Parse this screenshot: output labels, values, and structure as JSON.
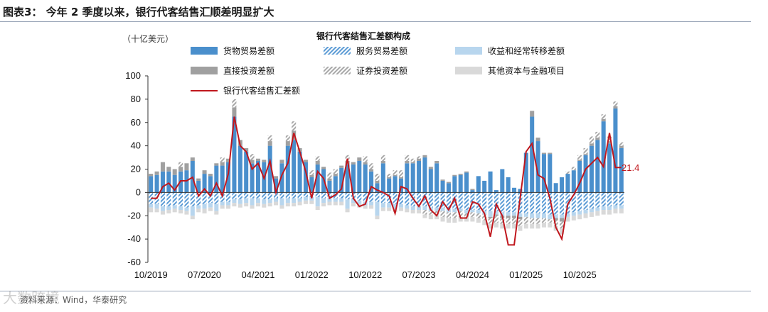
{
  "figure": {
    "title": "图表3： 今年 2 季度以来，银行代客结售汇顺差明显扩大",
    "source": "资料来源：Wind，华泰研究",
    "watermark": "大数跨境"
  },
  "chart_data": {
    "type": "bar",
    "unit_label": "（十亿美元）",
    "legend_title": "银行代客结售汇差额构成",
    "legend_position": "top",
    "ylim": [
      -60,
      100
    ],
    "yticks": [
      -60,
      -40,
      -20,
      0,
      20,
      40,
      60,
      80,
      100
    ],
    "x_tick_labels": [
      "10/2019",
      "07/2020",
      "04/2021",
      "01/2022",
      "10/2022",
      "07/2023",
      "04/2024",
      "01/2025",
      "10/2025"
    ],
    "end_label": "21.4",
    "colors": {
      "goods": "#4a8fcc",
      "services": "#5b9bd5",
      "income": "#b8d6ee",
      "direct": "#a0a0a0",
      "portfolio": "#a8a8a8",
      "other": "#d9d9d9",
      "net": "#c0171d"
    },
    "series": [
      {
        "key": "goods",
        "name": "货物贸易差额",
        "style": "solid",
        "values": [
          14,
          15,
          18,
          18,
          15,
          18,
          19,
          27,
          10,
          16,
          14,
          23,
          23,
          26,
          65,
          40,
          35,
          25,
          27,
          26,
          40,
          12,
          25,
          40,
          45,
          35,
          26,
          13,
          24,
          20,
          10,
          14,
          21,
          24,
          24,
          27,
          24,
          18,
          8,
          25,
          12,
          14,
          12,
          25,
          25,
          27,
          30,
          20,
          25,
          10,
          8,
          14,
          15,
          17,
          2,
          14,
          10,
          18,
          2,
          20,
          13,
          4,
          3,
          34,
          65,
          44,
          33,
          33,
          8,
          13,
          16,
          19,
          27,
          32,
          40,
          45,
          61,
          42,
          72,
          38
        ]
      },
      {
        "key": "services",
        "name": "服务贸易差额",
        "style": "hatch-blue",
        "values": [
          -10,
          -10,
          -12,
          -12,
          -11,
          -12,
          -13,
          -12,
          -11,
          -10,
          -9,
          -10,
          -8,
          -8,
          -6,
          -6,
          -5,
          -5,
          -5,
          -6,
          -6,
          -5,
          -5,
          -5,
          -5,
          -5,
          -4,
          -4,
          -4,
          -5,
          -5,
          -5,
          -5,
          -6,
          -6,
          -7,
          -8,
          -8,
          -8,
          -9,
          -9,
          -10,
          -10,
          -11,
          -12,
          -12,
          -12,
          -13,
          -13,
          -13,
          -14,
          -14,
          -14,
          -15,
          -15,
          -15,
          -16,
          -16,
          -16,
          -17,
          -17,
          -17,
          -18,
          -18,
          -18,
          -18,
          -18,
          -19,
          -19,
          -19,
          -18,
          -17,
          -16,
          -15,
          -14,
          -13,
          -12,
          -12,
          -11,
          -11
        ]
      },
      {
        "key": "income",
        "name": "收益和经常转移差额",
        "style": "solid",
        "values": [
          -3,
          -4,
          -4,
          -3,
          -3,
          -3,
          -3,
          -8,
          -3,
          -4,
          -4,
          -6,
          -3,
          -3,
          -3,
          -4,
          -4,
          -6,
          -4,
          -4,
          -3,
          -3,
          -6,
          -4,
          -4,
          -3,
          -3,
          -3,
          -8,
          -4,
          -3,
          -3,
          -3,
          -8,
          -3,
          -3,
          -3,
          -3,
          -12,
          -4,
          -4,
          -4,
          -3,
          -3,
          -3,
          -3,
          -3,
          -3,
          -3,
          -3,
          -3,
          -3,
          -2,
          -3,
          -2,
          -3,
          -3,
          -5,
          -3,
          -3,
          -3,
          -3,
          -3,
          -3,
          -4,
          -4,
          -4,
          -4,
          -3,
          -3,
          -3,
          -3,
          -3,
          -3,
          -3,
          -3,
          -3,
          -3,
          -3,
          -3
        ]
      },
      {
        "key": "direct",
        "name": "直接投资差额",
        "style": "solid",
        "values": [
          2,
          3,
          8,
          4,
          5,
          4,
          6,
          3,
          2,
          3,
          2,
          2,
          3,
          3,
          8,
          5,
          3,
          3,
          2,
          2,
          4,
          2,
          3,
          4,
          8,
          3,
          2,
          2,
          3,
          2,
          2,
          2,
          2,
          3,
          2,
          3,
          2,
          2,
          2,
          2,
          1,
          1,
          1,
          2,
          1,
          2,
          2,
          2,
          2,
          1,
          1,
          1,
          1,
          1,
          1,
          0,
          0,
          -1,
          -1,
          -2,
          -2,
          -2,
          -2,
          0,
          5,
          3,
          1,
          1,
          -2,
          -3,
          0,
          0,
          1,
          1,
          2,
          2,
          2,
          2,
          2,
          2
        ]
      },
      {
        "key": "portfolio",
        "name": "证券投资差额",
        "style": "hatch-gray",
        "values": [
          0,
          0,
          0,
          0,
          0,
          4,
          0,
          0,
          0,
          0,
          0,
          0,
          4,
          0,
          7,
          0,
          0,
          5,
          0,
          0,
          5,
          0,
          0,
          5,
          8,
          0,
          0,
          4,
          4,
          0,
          5,
          4,
          0,
          5,
          0,
          0,
          5,
          5,
          6,
          5,
          3,
          4,
          6,
          5,
          3,
          2,
          -4,
          -3,
          -3,
          -5,
          -5,
          -5,
          -5,
          -3,
          -4,
          -4,
          -5,
          -5,
          -6,
          -5,
          -5,
          -5,
          -6,
          -6,
          -5,
          -5,
          -4,
          -3,
          -5,
          -6,
          2,
          3,
          4,
          5,
          6,
          5,
          4,
          4,
          4,
          3
        ]
      },
      {
        "key": "other",
        "name": "其他资本与金融项目",
        "style": "solid",
        "values": [
          -4,
          -3,
          -3,
          -3,
          -3,
          -3,
          -3,
          -3,
          -3,
          -4,
          -3,
          -3,
          -3,
          -3,
          -3,
          -3,
          -3,
          -3,
          -3,
          -3,
          -3,
          -3,
          -3,
          -3,
          -3,
          -3,
          -3,
          -3,
          -3,
          -3,
          -3,
          -3,
          -3,
          -3,
          -3,
          -3,
          -3,
          -3,
          -3,
          -3,
          -3,
          -3,
          -3,
          -3,
          -3,
          -3,
          -3,
          -4,
          -4,
          -4,
          -4,
          -4,
          -4,
          -4,
          -4,
          -4,
          -4,
          -4,
          -4,
          -4,
          -4,
          -4,
          -4,
          -4,
          -4,
          -4,
          -4,
          -4,
          -4,
          -5,
          -4,
          -4,
          -4,
          -4,
          -4,
          -4,
          -4,
          -4,
          -4,
          -4
        ]
      },
      {
        "key": "net",
        "name": "银行代客结售汇差额",
        "style": "line",
        "values": [
          -5,
          -5,
          5,
          8,
          2,
          10,
          10,
          13,
          -3,
          3,
          -3,
          8,
          -3,
          16,
          65,
          40,
          35,
          20,
          25,
          12,
          27,
          0,
          15,
          25,
          51,
          35,
          18,
          -5,
          18,
          12,
          -5,
          -2,
          3,
          29,
          -5,
          -12,
          -10,
          5,
          2,
          0,
          -3,
          -18,
          5,
          3,
          -5,
          -12,
          -3,
          -15,
          -20,
          -8,
          -15,
          -5,
          -22,
          -22,
          -8,
          -10,
          -18,
          -38,
          -10,
          -20,
          -45,
          -45,
          -5,
          35,
          42,
          15,
          12,
          -5,
          -30,
          -40,
          -10,
          -2,
          8,
          20,
          25,
          30,
          22,
          51,
          21.4,
          21.4
        ]
      }
    ]
  }
}
